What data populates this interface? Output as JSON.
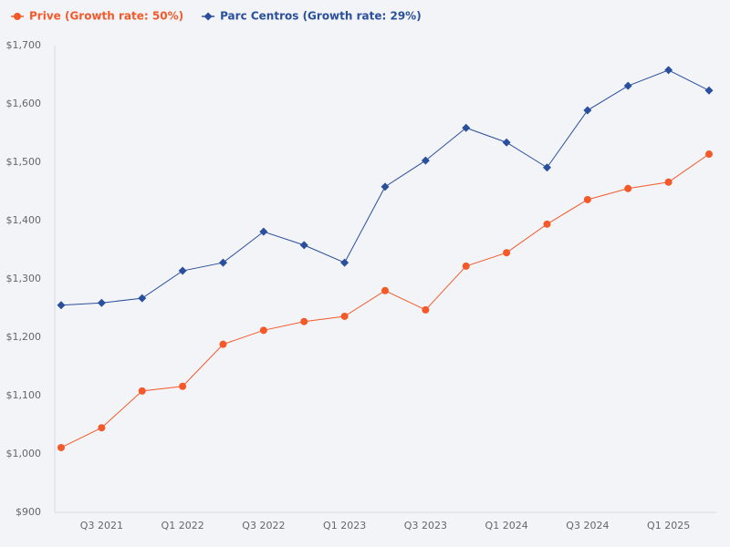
{
  "chart_data": {
    "type": "line",
    "categories": [
      null,
      "Q3 2021",
      null,
      "Q1 2022",
      null,
      "Q3 2022",
      null,
      "Q1 2023",
      null,
      "Q3 2023",
      null,
      "Q1 2024",
      null,
      "Q3 2024",
      null,
      "Q1 2025",
      null
    ],
    "series": [
      {
        "name": "Prive (Growth rate: 50%)",
        "color": "#f4592a",
        "marker": "circle",
        "values": [
          1011,
          1045,
          1108,
          1116,
          1188,
          1212,
          1227,
          1236,
          1280,
          1247,
          1322,
          1345,
          1394,
          1436,
          1455,
          1466,
          1514
        ]
      },
      {
        "name": "Parc Centros (Growth rate: 29%)",
        "color": "#2a4f9c",
        "marker": "diamond",
        "values": [
          1255,
          1259,
          1267,
          1314,
          1328,
          1381,
          1358,
          1328,
          1458,
          1503,
          1559,
          1534,
          1491,
          1589,
          1631,
          1658,
          1623
        ]
      }
    ],
    "ylim": [
      900,
      1700
    ],
    "yticks": [
      {
        "value": 900,
        "label": "$900"
      },
      {
        "value": 1000,
        "label": "$1,000"
      },
      {
        "value": 1100,
        "label": "$1,100"
      },
      {
        "value": 1200,
        "label": "$1,200"
      },
      {
        "value": 1300,
        "label": "$1,300"
      },
      {
        "value": 1400,
        "label": "$1,400"
      },
      {
        "value": 1500,
        "label": "$1,500"
      },
      {
        "value": 1600,
        "label": "$1,600"
      },
      {
        "value": 1700,
        "label": "$1,700"
      }
    ],
    "grid": false,
    "legend": "top-left"
  }
}
